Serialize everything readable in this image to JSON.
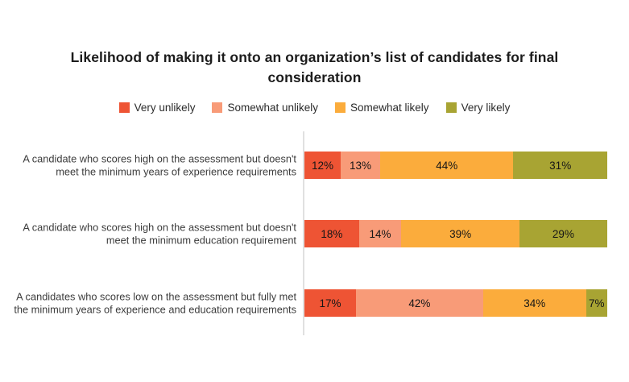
{
  "chart_data": {
    "type": "bar",
    "orientation": "horizontal",
    "stacked": true,
    "title": "Likelihood of making it onto an organization’s list of candidates for final consideration",
    "categories": [
      "A candidate who scores high on the assessment but doesn't meet the minimum years of experience requirements",
      "A candidate who scores high on the assessment but doesn't meet the minimum education requirement",
      "A candidates who scores low on the assessment but fully met the minimum years of experience and education requirements"
    ],
    "series": [
      {
        "name": "Very unlikely",
        "color": "#ee5434",
        "values": [
          12,
          18,
          17
        ]
      },
      {
        "name": "Somewhat unlikely",
        "color": "#f89b78",
        "values": [
          13,
          14,
          42
        ]
      },
      {
        "name": "Somewhat likely",
        "color": "#fbac3c",
        "values": [
          44,
          39,
          34
        ]
      },
      {
        "name": "Very likely",
        "color": "#a8a433",
        "values": [
          31,
          29,
          7
        ]
      }
    ],
    "value_suffix": "%",
    "xlim": [
      0,
      100
    ],
    "legend_position": "top",
    "data_labels": "inside",
    "background_color": "#ffffff",
    "axis_line_color": "#e0e0e0"
  }
}
